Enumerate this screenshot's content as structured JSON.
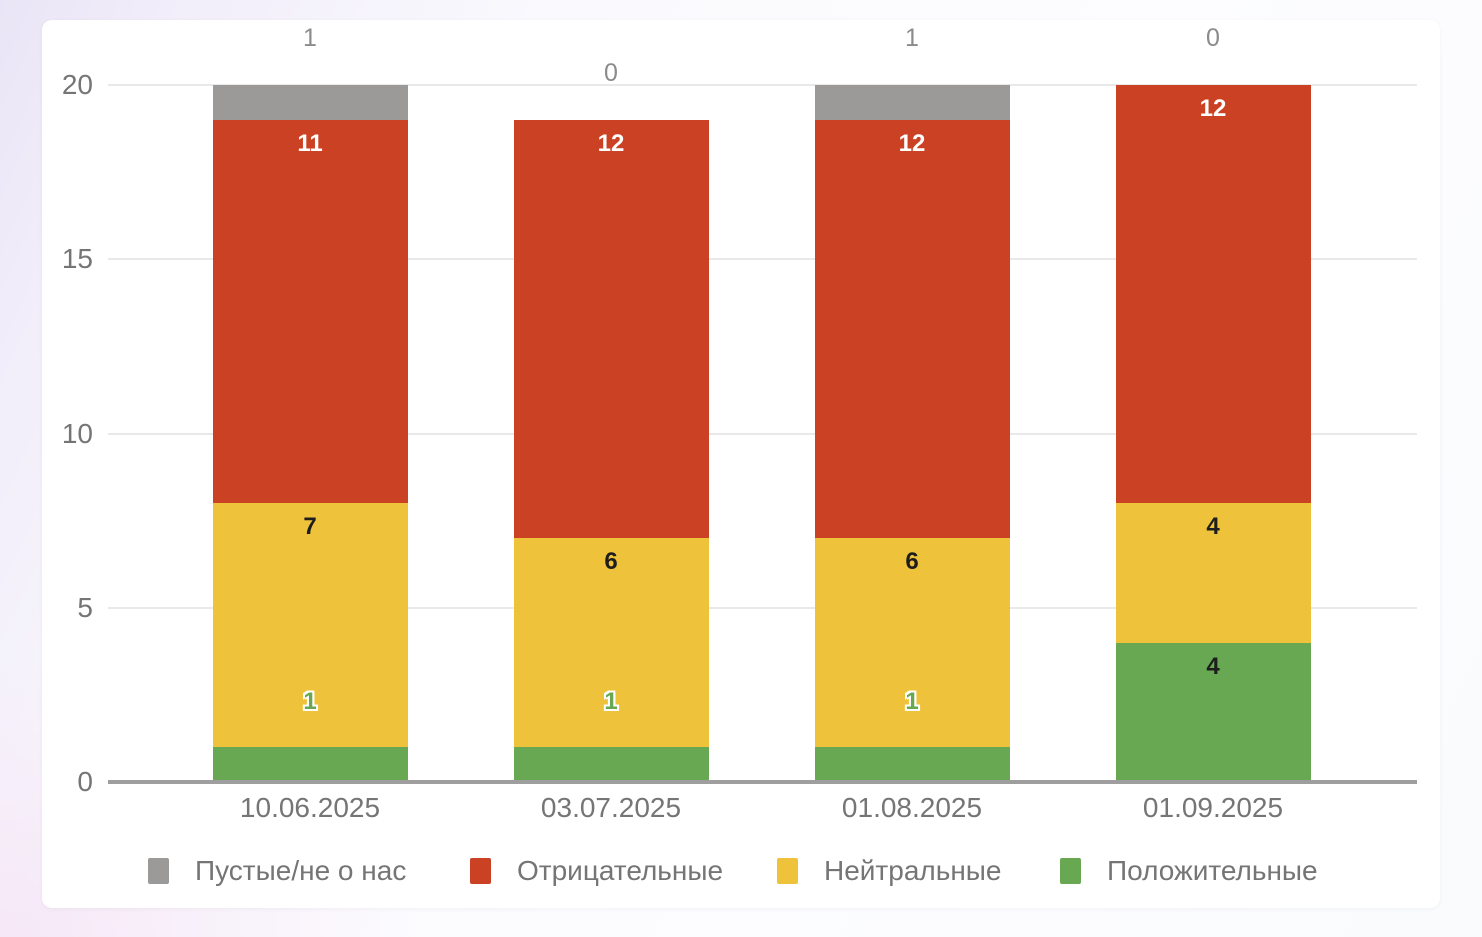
{
  "chart_data": {
    "type": "bar",
    "stacked": true,
    "title": "",
    "xlabel": "",
    "ylabel": "",
    "categories": [
      "10.06.2025",
      "03.07.2025",
      "01.08.2025",
      "01.09.2025"
    ],
    "series": [
      {
        "name": "Положительные",
        "color": "#68a853",
        "label_color": "#1d1d1d",
        "values": [
          1,
          1,
          1,
          4
        ]
      },
      {
        "name": "Нейтральные",
        "color": "#eec23a",
        "label_color": "#1d1d1d",
        "values": [
          7,
          6,
          6,
          4
        ]
      },
      {
        "name": "Отрицательные",
        "color": "#cb4123",
        "label_color": "#ffffff",
        "values": [
          11,
          12,
          12,
          12
        ]
      },
      {
        "name": "Пустые/не о нас",
        "color": "#9b9a99",
        "label_color": "#8b8b8b",
        "values": [
          1,
          0,
          1,
          0
        ]
      }
    ],
    "legend": [
      {
        "label": "Пустые/не о нас",
        "color": "#9b9a99"
      },
      {
        "label": "Отрицательные",
        "color": "#cb4123"
      },
      {
        "label": "Нейтральные",
        "color": "#eec23a"
      },
      {
        "label": "Положительные",
        "color": "#68a853"
      }
    ],
    "legend_position": "bottom",
    "yticks": [
      0,
      5,
      10,
      15,
      20
    ],
    "ylim": [
      0,
      20
    ],
    "grid": true,
    "colors": {
      "axis_text": "#757575",
      "gridline": "#e9e9e9",
      "baseline": "#9e9e9e",
      "outside_top_label": "#8b8b8b",
      "card_background": "#ffffff"
    }
  }
}
